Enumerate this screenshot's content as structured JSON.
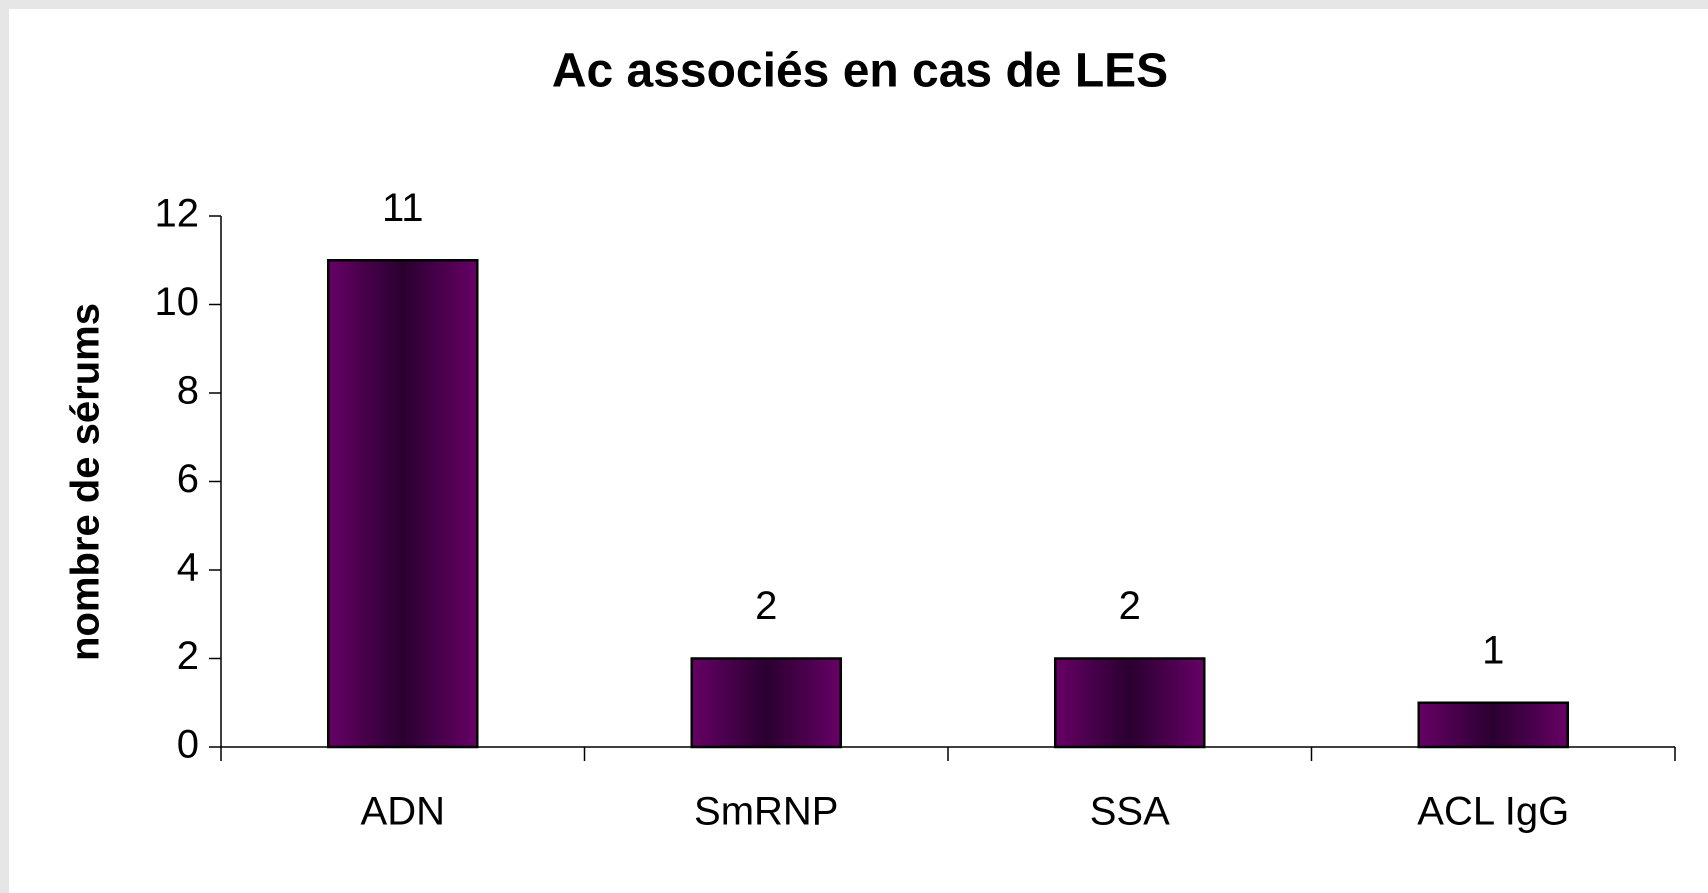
{
  "chart_data": {
    "type": "bar",
    "title": "Ac associés en cas de LES",
    "y_label": "nombre de sérums",
    "categories": [
      "ADN",
      "SmRNP",
      "SSA",
      "ACL IgG"
    ],
    "values": [
      11,
      2,
      2,
      1
    ],
    "color": "#660066",
    "ylim": [
      0,
      12
    ],
    "yticks": [
      0,
      2,
      4,
      6,
      8,
      10,
      12
    ],
    "grid": false
  }
}
